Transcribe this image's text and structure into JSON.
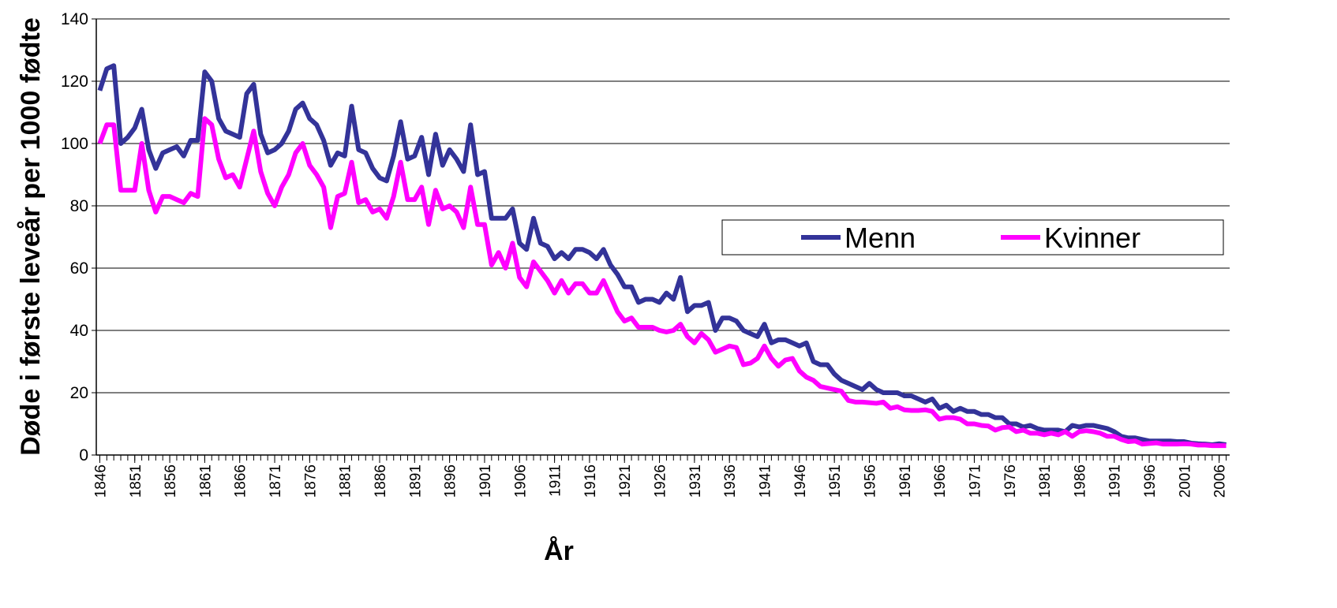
{
  "chart_data": {
    "type": "line",
    "y_label": "Døde i første leveår per 1000 fødte",
    "x_label": "År",
    "x": [
      1846,
      1847,
      1848,
      1849,
      1850,
      1851,
      1852,
      1853,
      1854,
      1855,
      1856,
      1857,
      1858,
      1859,
      1860,
      1861,
      1862,
      1863,
      1864,
      1865,
      1866,
      1867,
      1868,
      1869,
      1870,
      1871,
      1872,
      1873,
      1874,
      1875,
      1876,
      1877,
      1878,
      1879,
      1880,
      1881,
      1882,
      1883,
      1884,
      1885,
      1886,
      1887,
      1888,
      1889,
      1890,
      1891,
      1892,
      1893,
      1894,
      1895,
      1896,
      1897,
      1898,
      1899,
      1900,
      1901,
      1902,
      1903,
      1904,
      1905,
      1906,
      1907,
      1908,
      1909,
      1910,
      1911,
      1912,
      1913,
      1914,
      1915,
      1916,
      1917,
      1918,
      1919,
      1920,
      1921,
      1922,
      1923,
      1924,
      1925,
      1926,
      1927,
      1928,
      1929,
      1930,
      1931,
      1932,
      1933,
      1934,
      1935,
      1936,
      1937,
      1938,
      1939,
      1940,
      1941,
      1942,
      1943,
      1944,
      1945,
      1946,
      1947,
      1948,
      1949,
      1950,
      1951,
      1952,
      1953,
      1954,
      1955,
      1956,
      1957,
      1958,
      1959,
      1960,
      1961,
      1962,
      1963,
      1964,
      1965,
      1966,
      1967,
      1968,
      1969,
      1970,
      1971,
      1972,
      1973,
      1974,
      1975,
      1976,
      1977,
      1978,
      1979,
      1980,
      1981,
      1982,
      1983,
      1984,
      1985,
      1986,
      1987,
      1988,
      1989,
      1990,
      1991,
      1992,
      1993,
      1994,
      1995,
      1996,
      1997,
      1998,
      1999,
      2000,
      2001,
      2002,
      2003,
      2004,
      2005,
      2006,
      2007
    ],
    "series": [
      {
        "name": "Menn",
        "color": "#333399",
        "values": [
          117,
          124,
          125,
          100,
          102,
          105,
          111,
          98,
          92,
          97,
          98,
          99,
          96,
          101,
          101,
          123,
          120,
          108,
          104,
          103,
          102,
          116,
          119,
          103,
          97,
          98,
          100,
          104,
          111,
          113,
          108,
          106,
          101,
          93,
          97,
          96,
          112,
          98,
          97,
          92,
          89,
          88,
          96,
          107,
          95,
          96,
          102,
          90,
          103,
          93,
          98,
          95,
          91,
          106,
          90,
          91,
          76,
          76,
          76,
          79,
          68,
          66,
          76,
          68,
          67,
          63,
          65,
          63,
          66,
          66,
          65,
          63,
          66,
          61,
          58,
          54,
          54,
          49,
          50,
          50,
          49,
          52,
          50,
          57,
          46,
          48,
          48,
          49,
          40,
          44,
          44,
          43,
          40,
          39,
          38,
          42,
          36,
          37,
          37,
          36,
          35,
          36,
          30,
          29,
          29,
          26,
          24,
          23,
          22,
          21,
          23,
          21,
          20,
          20,
          20,
          19,
          19,
          18,
          17,
          18,
          15,
          16,
          14,
          15,
          14,
          14,
          13,
          13,
          12,
          12,
          10,
          10,
          9,
          9.5,
          8.5,
          8,
          8,
          8,
          7.5,
          9.5,
          9,
          9.5,
          9.5,
          9,
          8.5,
          7.5,
          6,
          5.5,
          5.5,
          5,
          4.5,
          4.5,
          4.5,
          4.5,
          4.3,
          4.3,
          3.8,
          3.6,
          3.5,
          3.3,
          3.6,
          3.3
        ]
      },
      {
        "name": "Kvinner",
        "color": "#ff00ff",
        "values": [
          100,
          106,
          106,
          85,
          85,
          85,
          100,
          85,
          78,
          83,
          83,
          82,
          81,
          84,
          83,
          108,
          106,
          95,
          89,
          90,
          86,
          95,
          104,
          91,
          84,
          80,
          86,
          90,
          97,
          100,
          93,
          90,
          86,
          73,
          83,
          84,
          94,
          81,
          82,
          78,
          79,
          76,
          83,
          94,
          82,
          82,
          86,
          74,
          85,
          79,
          80,
          78,
          73,
          86,
          74,
          74,
          61,
          65,
          60,
          68,
          57,
          54,
          62,
          59,
          56,
          52,
          56,
          52,
          55,
          55,
          52,
          52,
          56,
          51,
          46,
          43,
          44,
          41,
          41,
          41,
          40,
          39.5,
          40,
          42,
          38,
          36,
          39,
          37,
          33,
          34,
          35,
          34.5,
          29,
          29.5,
          31,
          35,
          31,
          28.5,
          30.5,
          31,
          27,
          25,
          24,
          22,
          21.5,
          21,
          20.5,
          17.5,
          17,
          17,
          16.8,
          16.6,
          17,
          15,
          15.5,
          14.5,
          14.3,
          14.3,
          14.5,
          14,
          11.5,
          12,
          12,
          11.5,
          10,
          10,
          9.5,
          9.3,
          8,
          8.8,
          9,
          7.5,
          8,
          7,
          7,
          6.5,
          7,
          6.5,
          7.5,
          6,
          7.5,
          7.8,
          7.5,
          7,
          6,
          6,
          5,
          4.3,
          4.5,
          3.5,
          3.7,
          3.9,
          3.5,
          3.5,
          3.5,
          3.6,
          3.5,
          3.2,
          3.2,
          3,
          3,
          3
        ]
      }
    ],
    "xlim": [
      1845.5,
      2007.5
    ],
    "xticks": [
      1846,
      1851,
      1856,
      1861,
      1866,
      1871,
      1876,
      1881,
      1886,
      1891,
      1896,
      1901,
      1906,
      1911,
      1916,
      1921,
      1926,
      1931,
      1936,
      1941,
      1946,
      1951,
      1956,
      1961,
      1966,
      1971,
      1976,
      1981,
      1986,
      1991,
      1996,
      2001,
      2006
    ],
    "ylim": [
      0,
      140
    ],
    "yticks": [
      0,
      20,
      40,
      60,
      80,
      100,
      120,
      140
    ],
    "grid": true,
    "legend": "right"
  }
}
